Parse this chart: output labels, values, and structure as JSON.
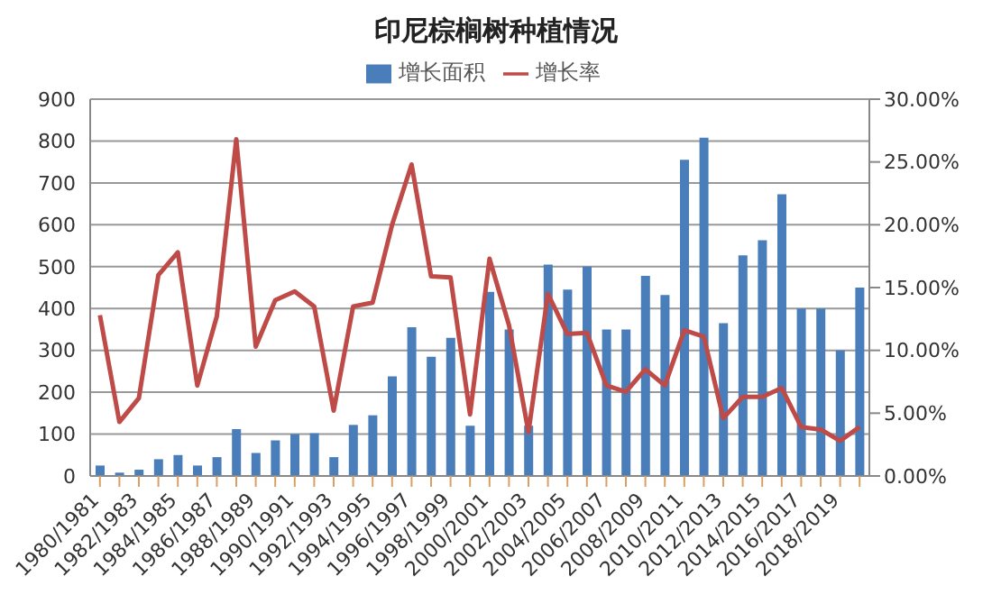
{
  "chart_data": {
    "type": "bar",
    "title": "印尼棕榈树种植情况",
    "categories": [
      "1980/1981",
      null,
      "1982/1983",
      null,
      "1984/1985",
      null,
      "1986/1987",
      null,
      "1988/1989",
      null,
      "1990/1991",
      null,
      "1992/1993",
      null,
      "1994/1995",
      null,
      "1996/1997",
      null,
      "1998/1999",
      null,
      "2000/2001",
      null,
      "2002/2003",
      null,
      "2004/2005",
      null,
      "2006/2007",
      null,
      "2008/2009",
      null,
      "2010/2011",
      null,
      "2012/2013",
      null,
      "2014/2015",
      null,
      "2016/2017",
      null,
      "2018/2019",
      null
    ],
    "series": [
      {
        "name": "增长面积",
        "color": "#4a7ebb",
        "values": [
          25,
          8,
          15,
          40,
          50,
          25,
          45,
          112,
          55,
          85,
          100,
          102,
          45,
          122,
          145,
          238,
          355,
          285,
          330,
          120,
          440,
          350,
          120,
          505,
          445,
          500,
          350,
          350,
          478,
          432,
          755,
          808,
          365,
          527,
          563,
          673,
          400,
          400,
          300,
          450
        ]
      },
      {
        "name": "增长率",
        "type": "line",
        "axis": "y2",
        "color": "#be4b48",
        "values": [
          12.8,
          4.3,
          6.2,
          16,
          17.8,
          7.2,
          12.7,
          26.8,
          10.3,
          14,
          14.7,
          13.5,
          5.2,
          13.5,
          13.8,
          20,
          24.8,
          15.9,
          15.8,
          4.9,
          17.3,
          12,
          3.5,
          14.5,
          11.3,
          11.4,
          7.2,
          6.7,
          8.5,
          7.2,
          11.6,
          11.1,
          4.6,
          6.3,
          6.3,
          7,
          3.9,
          3.7,
          2.8,
          3.9
        ]
      }
    ],
    "ylim": [
      0,
      900
    ],
    "yticks": [
      0,
      100,
      200,
      300,
      400,
      500,
      600,
      700,
      800,
      900
    ],
    "y2lim": [
      0,
      30
    ],
    "y2ticks": [
      {
        "value": 0,
        "label": "0.00%"
      },
      {
        "value": 5,
        "label": "5.00%"
      },
      {
        "value": 10,
        "label": "10.00%"
      },
      {
        "value": 15,
        "label": "15.00%"
      },
      {
        "value": 20,
        "label": "20.00%"
      },
      {
        "value": 25,
        "label": "25.00%"
      },
      {
        "value": 30,
        "label": "30.00%"
      }
    ],
    "grid": "y",
    "legend": "top",
    "marker": "none"
  }
}
